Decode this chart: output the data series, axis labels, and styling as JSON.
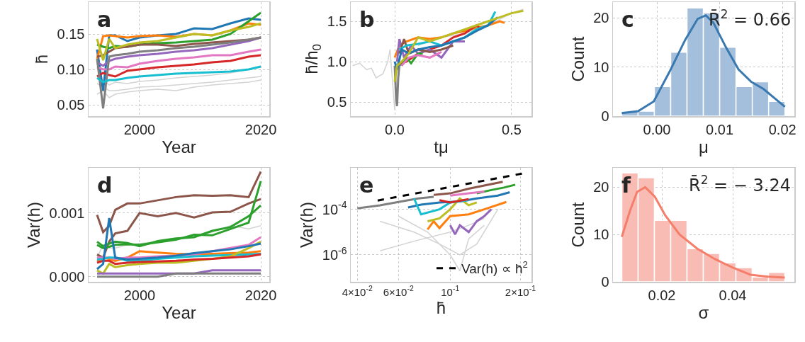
{
  "chart_data": [
    {
      "type": "line",
      "title": "a",
      "xlabel": "Year",
      "ylabel": "h̄",
      "xlim": [
        1991.6,
        2021.4
      ],
      "ylim": [
        0.034,
        0.195
      ],
      "xticks": [
        {
          "value": 2000,
          "label": "2000"
        },
        {
          "value": 2020,
          "label": "2020"
        }
      ],
      "yticks": [
        {
          "value": 0.05,
          "label": "0.05"
        },
        {
          "value": 0.1,
          "label": "0.10"
        },
        {
          "value": 0.15,
          "label": "0.15"
        }
      ],
      "grid": true,
      "x": [
        1993,
        1994,
        1995,
        1996,
        1998,
        2000,
        2003,
        2006,
        2009,
        2012,
        2015,
        2018,
        2020
      ],
      "series": [
        {
          "color": "#d3d3d3",
          "values": [
            0.08,
            0.075,
            0.07,
            0.07,
            0.072,
            0.075,
            0.076,
            0.078,
            0.08,
            0.082,
            0.085,
            0.088,
            0.09
          ]
        },
        {
          "color": "#d3d3d3",
          "values": [
            0.09,
            0.085,
            0.078,
            0.082,
            0.08,
            0.083,
            0.085,
            0.088,
            0.09,
            0.092,
            0.095,
            0.1,
            0.105
          ]
        },
        {
          "color": "#d3d3d3",
          "values": [
            0.065,
            0.07,
            0.06,
            0.065,
            0.068,
            0.07,
            0.072,
            0.07,
            0.075,
            0.078,
            0.08,
            0.082,
            0.085
          ]
        },
        {
          "color": "#1f77b4",
          "values": [
            0.128,
            0.07,
            0.148,
            0.148,
            0.14,
            0.145,
            0.148,
            0.15,
            0.158,
            0.157,
            0.165,
            0.172,
            0.17
          ]
        },
        {
          "color": "#ff7f0e",
          "values": [
            0.115,
            0.147,
            0.148,
            0.147,
            0.145,
            0.147,
            0.148,
            0.146,
            0.15,
            0.148,
            0.155,
            0.165,
            0.163
          ]
        },
        {
          "color": "#2ca02c",
          "values": [
            0.135,
            0.132,
            0.13,
            0.133,
            0.132,
            0.135,
            0.137,
            0.138,
            0.14,
            0.142,
            0.15,
            0.168,
            0.18
          ]
        },
        {
          "color": "#d62728",
          "values": [
            0.09,
            0.095,
            0.092,
            0.09,
            0.098,
            0.1,
            0.103,
            0.105,
            0.107,
            0.11,
            0.112,
            0.118,
            0.12
          ]
        },
        {
          "color": "#9467bd",
          "values": [
            0.11,
            0.105,
            0.112,
            0.115,
            0.118,
            0.12,
            0.122,
            0.125,
            0.127,
            0.13,
            0.135,
            0.14,
            0.145
          ]
        },
        {
          "color": "#8c564b",
          "values": [
            0.118,
            0.12,
            0.125,
            0.13,
            0.132,
            0.135,
            0.135,
            0.133,
            0.136,
            0.138,
            0.14,
            0.142,
            0.145
          ]
        },
        {
          "color": "#e377c2",
          "values": [
            0.103,
            0.1,
            0.1,
            0.104,
            0.103,
            0.108,
            0.112,
            0.115,
            0.117,
            0.12,
            0.12,
            0.125,
            0.128
          ]
        },
        {
          "color": "#7f7f7f",
          "values": [
            0.115,
            0.045,
            0.118,
            0.12,
            0.122,
            0.125,
            0.127,
            0.13,
            0.132,
            0.135,
            0.138,
            0.142,
            0.145
          ]
        },
        {
          "color": "#bcbd22",
          "values": [
            0.143,
            0.113,
            0.143,
            0.13,
            0.135,
            0.138,
            0.14,
            0.145,
            0.15,
            0.148,
            0.155,
            0.16,
            0.165
          ]
        },
        {
          "color": "#17becf",
          "values": [
            0.088,
            0.082,
            0.085,
            0.085,
            0.088,
            0.09,
            0.092,
            0.094,
            0.095,
            0.096,
            0.097,
            0.1,
            0.104
          ]
        }
      ]
    },
    {
      "type": "line",
      "title": "b",
      "xlabel": "tμ",
      "ylabel": "h̄/h$_{0}$",
      "xlim": [
        -0.188,
        0.585
      ],
      "ylim": [
        0.325,
        1.737
      ],
      "xticks": [
        {
          "value": 0,
          "label": "0.0"
        },
        {
          "value": 0.5,
          "label": "0.5"
        }
      ],
      "yticks": [
        {
          "value": 0.5,
          "label": "0.5"
        },
        {
          "value": 1,
          "label": "1.0"
        },
        {
          "value": 1.5,
          "label": "1.5"
        }
      ],
      "grid": true,
      "series": [
        {
          "color": "#d3d3d3",
          "x": [
            -0.18,
            -0.15,
            -0.12,
            -0.1,
            -0.08,
            -0.05,
            -0.03,
            -0.02,
            0,
            0.01,
            0.03
          ],
          "values": [
            0.95,
            0.98,
            0.9,
            0.92,
            0.8,
            0.85,
            1.0,
            1.15,
            0.4,
            1.0,
            1.1
          ]
        },
        {
          "color": "#d3d3d3",
          "x": [
            0.1,
            0.2,
            0.3,
            0.4,
            0.5,
            0.55
          ],
          "values": [
            1.2,
            1.3,
            1.35,
            1.45,
            1.6,
            1.65
          ]
        },
        {
          "color": "#7f7f7f",
          "x": [
            0,
            0.005,
            0.01,
            0.015,
            0.02,
            0.04
          ],
          "values": [
            0.95,
            0.6,
            0.45,
            0.8,
            0.95,
            1.0
          ]
        },
        {
          "color": "#ff7f0e",
          "x": [
            0,
            0.02,
            0.05,
            0.1,
            0.15,
            0.2,
            0.25,
            0.3,
            0.35,
            0.4,
            0.45,
            0.47
          ],
          "values": [
            1.05,
            1.2,
            1.25,
            1.3,
            1.28,
            1.3,
            1.35,
            1.38,
            1.42,
            1.45,
            1.5,
            1.48
          ]
        },
        {
          "color": "#d62728",
          "x": [
            0.02,
            0.05,
            0.1,
            0.15,
            0.2,
            0.25,
            0.3,
            0.35,
            0.37
          ],
          "values": [
            0.98,
            1.0,
            1.1,
            1.15,
            1.2,
            1.3,
            1.35,
            1.45,
            1.4
          ]
        },
        {
          "color": "#9467bd",
          "x": [
            0.01,
            0.02,
            0.04,
            0.07,
            0.1,
            0.15,
            0.2,
            0.25,
            0.3
          ],
          "values": [
            1.0,
            1.28,
            1.05,
            1.2,
            1.1,
            1.15,
            1.05,
            1.25,
            1.25
          ]
        },
        {
          "color": "#8c564b",
          "x": [
            0.02,
            0.04,
            0.06,
            0.1,
            0.15,
            0.2,
            0.25
          ],
          "values": [
            1.1,
            1.28,
            1.1,
            1.15,
            1.12,
            1.15,
            1.2
          ]
        },
        {
          "color": "#2ca02c",
          "x": [
            0.03,
            0.05,
            0.07,
            0.1,
            0.12
          ],
          "values": [
            0.95,
            1.05,
            0.98,
            1.1,
            1.1
          ]
        },
        {
          "color": "#e377c2",
          "x": [
            0.03,
            0.06,
            0.1,
            0.15,
            0.2
          ],
          "values": [
            0.95,
            1.05,
            1.08,
            1.05,
            1.12
          ]
        },
        {
          "color": "#17becf",
          "x": [
            0.02,
            0.05,
            0.1,
            0.15,
            0.2,
            0.25,
            0.3,
            0.35,
            0.4,
            0.43
          ],
          "values": [
            1.15,
            1.2,
            1.22,
            1.25,
            1.2,
            1.25,
            1.3,
            1.4,
            1.45,
            1.62
          ]
        },
        {
          "color": "#1f77b4",
          "x": [
            0,
            0.01,
            0.03,
            0.06,
            0.1,
            0.15,
            0.2,
            0.25,
            0.3,
            0.35,
            0.4,
            0.44
          ],
          "values": [
            1.0,
            0.9,
            1.15,
            1.1,
            1.15,
            1.18,
            1.2,
            1.25,
            1.3,
            1.38,
            1.45,
            1.55
          ]
        },
        {
          "color": "#bcbd22",
          "x": [
            0,
            0.01,
            0.03,
            0.06,
            0.1,
            0.15,
            0.2,
            0.25,
            0.3,
            0.35,
            0.4,
            0.45,
            0.5,
            0.55
          ],
          "values": [
            0.75,
            0.95,
            1.0,
            1.1,
            1.3,
            1.25,
            1.3,
            1.35,
            1.4,
            1.45,
            1.5,
            1.55,
            1.6,
            1.63
          ]
        }
      ]
    },
    {
      "type": "histogram",
      "title": "c",
      "xlabel": "μ",
      "ylabel": "Count",
      "xlim": [
        -0.007,
        0.0219
      ],
      "ylim": [
        0,
        23.2
      ],
      "xticks": [
        {
          "value": 0,
          "label": "0.00"
        },
        {
          "value": 0.01,
          "label": "0.01"
        },
        {
          "value": 0.02,
          "label": "0.02"
        }
      ],
      "yticks": [
        0,
        10,
        20
      ],
      "grid": true,
      "annotations": [
        "R̄$^{2}$ = 0.66"
      ],
      "bins": [
        -0.0056,
        -0.003,
        -0.0004,
        0.0022,
        0.0048,
        0.0074,
        0.01,
        0.0126,
        0.0152,
        0.0178,
        0.0204
      ],
      "values": [
        1,
        1,
        6,
        13,
        22,
        21,
        14,
        6,
        7,
        3
      ],
      "color": "#a3bfdb",
      "series": [
        {
          "type": "line",
          "color": "#3a78b0",
          "x": [
            -0.0056,
            -0.003,
            -0.0005,
            0.002,
            0.0045,
            0.0065,
            0.0078,
            0.009,
            0.011,
            0.013,
            0.015,
            0.017,
            0.0204
          ],
          "values": [
            0.6,
            1.0,
            3,
            9,
            15.5,
            19.8,
            20.5,
            19,
            14,
            9.5,
            7,
            5.5,
            1.9
          ]
        }
      ]
    },
    {
      "type": "line",
      "title": "d",
      "xlabel": "Year",
      "ylabel": "Var(h)",
      "xlim": [
        1991.6,
        2021.4
      ],
      "ylim": [
        -8e-05,
        0.00171
      ],
      "xticks": [
        {
          "value": 2000,
          "label": "2000"
        },
        {
          "value": 2020,
          "label": "2020"
        }
      ],
      "yticks": [
        {
          "value": 0,
          "label": "0.000"
        },
        {
          "value": 0.001,
          "label": "0.001"
        }
      ],
      "grid": true,
      "x": [
        1993,
        1994,
        1995,
        1996,
        1998,
        2000,
        2003,
        2006,
        2009,
        2012,
        2015,
        2018,
        2020
      ],
      "series": [
        {
          "color": "#d3d3d3",
          "values": [
            0.0003,
            0.0005,
            0.00045,
            0.00045,
            0.0005,
            0.00052,
            0.00055,
            0.0006,
            0.00065,
            0.0007,
            0.0008,
            0.00075,
            0.0008
          ]
        },
        {
          "color": "#8c564b",
          "values": [
            0.00097,
            0.0007,
            0.0008,
            0.00105,
            0.00115,
            0.00115,
            0.0012,
            0.00125,
            0.00128,
            0.00127,
            0.00128,
            0.00125,
            0.00165
          ]
        },
        {
          "color": "#8c564b",
          "values": [
            0.00035,
            0.0003,
            0.00055,
            0.00068,
            0.00072,
            0.001,
            0.00095,
            0.001,
            0.00093,
            0.00101,
            0.00102,
            0.00115,
            0.00122
          ]
        },
        {
          "color": "#2ca02c",
          "values": [
            0.00055,
            0.00048,
            0.00052,
            0.00055,
            0.00053,
            0.00048,
            0.00056,
            0.0006,
            0.00062,
            0.00072,
            0.00078,
            0.00095,
            0.00112
          ]
        },
        {
          "color": "#2ca02c",
          "values": [
            0.0005,
            0.00045,
            0.00047,
            0.0005,
            0.00051,
            0.0005,
            0.00054,
            0.00058,
            0.00066,
            0.00065,
            0.00075,
            0.00085,
            0.0015
          ]
        },
        {
          "color": "#ff7f0e",
          "values": [
            0.00025,
            0.0003,
            0.00028,
            0.00025,
            0.0003,
            0.0004,
            0.00038,
            0.00036,
            0.00035,
            0.00036,
            0.00037,
            0.00038,
            0.0004
          ]
        },
        {
          "color": "#e377c2",
          "values": [
            0.0003,
            0.0003,
            0.0003,
            0.00028,
            0.0003,
            0.0003,
            0.00032,
            0.00033,
            0.00035,
            0.0004,
            0.00045,
            0.0005,
            0.00062
          ]
        },
        {
          "color": "#17becf",
          "values": [
            0.00027,
            0.00028,
            0.0003,
            0.0003,
            0.00025,
            0.00025,
            0.00028,
            0.0003,
            0.00032,
            0.00033,
            0.00034,
            0.00035,
            0.00036
          ]
        },
        {
          "color": "#bcbd22",
          "values": [
            0.0001,
            5e-05,
            0.0002,
            0.00015,
            0.00018,
            0.0002,
            0.00022,
            0.00022,
            0.00025,
            0.00028,
            0.00032,
            0.00045,
            0.00055
          ]
        },
        {
          "color": "#d62728",
          "values": [
            0.00022,
            0.00025,
            0.00025,
            0.0002,
            0.00022,
            0.00023,
            0.00024,
            0.00025,
            0.00027,
            0.00028,
            0.0003,
            0.00032,
            0.00035
          ]
        },
        {
          "color": "#9467bd",
          "values": [
            5e-05,
            5e-05,
            5e-05,
            5e-05,
            5e-05,
            5e-05,
            5e-05,
            5e-05,
            5e-05,
            0.0001,
            0.0001,
            0.0001,
            0.0001
          ]
        },
        {
          "color": "#7f7f7f",
          "values": [
            0,
            0,
            0,
            0,
            0,
            0,
            0,
            5e-05,
            5e-05,
            5e-05,
            5e-05,
            5e-05,
            5e-05
          ]
        },
        {
          "color": "#1f77b4",
          "values": [
            0.00012,
            0.0002,
            0.00092,
            0.0003,
            0.00027,
            0.00028,
            0.0003,
            0.00033,
            0.00037,
            0.0004,
            0.00043,
            0.00048,
            0.00052
          ]
        }
      ]
    },
    {
      "type": "line",
      "title": "e",
      "xlabel": "h̄",
      "ylabel": "Var(h)",
      "log": "xy",
      "xlim": [
        0.0375,
        0.223
      ],
      "ylim": [
        6.6e-08,
        0.0066
      ],
      "xticks": [
        {
          "value": 0.04,
          "label": "4×10$^{-2}$"
        },
        {
          "value": 0.06,
          "label": "6×10$^{-2}$"
        },
        {
          "value": 0.1,
          "label": "10$^{-1}$"
        },
        {
          "value": 0.2,
          "label": "2×10$^{-1}$"
        }
      ],
      "yticks": [
        {
          "value": 1e-06,
          "label": "10$^{-6}$"
        },
        {
          "value": 0.0001,
          "label": "10$^{-4}$"
        }
      ],
      "grid": true,
      "legend": "bottom right",
      "series": [
        {
          "color": "#d3d3d3",
          "x": [
            0.05,
            0.07,
            0.1,
            0.12,
            0.14
          ],
          "values": [
            1.5e-06,
            4e-06,
            1e-05,
            2e-05,
            4e-05
          ]
        },
        {
          "color": "#d3d3d3",
          "x": [
            0.06,
            0.08,
            0.1,
            0.11,
            0.12,
            0.14
          ],
          "values": [
            5e-05,
            1e-05,
            1e-06,
            2e-07,
            5e-06,
            2e-05
          ]
        },
        {
          "color": "#d3d3d3",
          "x": [
            0.05,
            0.07,
            0.09,
            0.11,
            0.13,
            0.16
          ],
          "values": [
            3e-05,
            1e-05,
            3e-06,
            1e-06,
            3e-06,
            0.0001
          ]
        },
        {
          "color": "#7f7f7f",
          "x": [
            0.04,
            0.05,
            0.06,
            0.073,
            0.085
          ],
          "values": [
            0.00011,
            0.00015,
            0.00021,
            0.0003,
            0.00035
          ]
        },
        {
          "color": "#8c564b",
          "x": [
            0.085,
            0.1,
            0.12,
            0.14,
            0.168
          ],
          "values": [
            0.00043,
            0.0005,
            0.0008,
            0.0011,
            0.0016
          ]
        },
        {
          "color": "#1f77b4",
          "x": [
            0.066,
            0.075,
            0.09,
            0.11,
            0.13,
            0.16,
            0.18
          ],
          "values": [
            0.00012,
            0.00016,
            0.0002,
            0.00022,
            0.0003,
            0.0004,
            0.00056
          ]
        },
        {
          "color": "#2ca02c",
          "x": [
            0.13,
            0.15,
            0.17,
            0.19
          ],
          "values": [
            0.0005,
            0.0007,
            0.0009,
            0.0012
          ]
        },
        {
          "color": "#ff7f0e",
          "x": [
            0.08,
            0.085,
            0.09,
            0.1,
            0.12,
            0.14,
            0.174
          ],
          "values": [
            1.3e-05,
            3e-05,
            1.5e-05,
            5e-05,
            6e-05,
            0.0001,
            0.00021
          ]
        },
        {
          "color": "#9467bd",
          "x": [
            0.1,
            0.105,
            0.11,
            0.12,
            0.13,
            0.14,
            0.15
          ],
          "values": [
            2e-05,
            8e-06,
            2e-05,
            1e-05,
            3e-05,
            5e-05,
            0.0001
          ]
        },
        {
          "color": "#bcbd22",
          "x": [
            0.08,
            0.09,
            0.1,
            0.11,
            0.12,
            0.13
          ],
          "values": [
            3e-05,
            4e-05,
            0.0001,
            0.0003,
            0.00015,
            0.0002
          ]
        },
        {
          "color": "#17becf",
          "x": [
            0.07,
            0.075,
            0.09,
            0.1,
            0.12
          ],
          "values": [
            0.0003,
            6e-05,
            0.0001,
            0.0002,
            0.00025
          ]
        },
        {
          "color": "#e377c2",
          "x": [
            0.1,
            0.12,
            0.14
          ],
          "values": [
            0.0004,
            0.0005,
            0.0006
          ]
        },
        {
          "color": "#d62728",
          "x": [
            0.09,
            0.1,
            0.12
          ],
          "values": [
            0.00025,
            0.0002,
            0.00028
          ]
        },
        {
          "name": "Var(h) ∝ h̄$^{2}$",
          "color": "#000000",
          "line_style": "dashed",
          "x": [
            0.0489,
            0.204
          ],
          "values": [
            0.000243,
            0.0037
          ]
        }
      ]
    },
    {
      "type": "histogram",
      "title": "f",
      "xlabel": "σ",
      "ylabel": "Count",
      "xlim": [
        0.0062,
        0.0574
      ],
      "ylim": [
        0,
        24.1
      ],
      "xticks": [
        {
          "value": 0.02,
          "label": "0.02"
        },
        {
          "value": 0.04,
          "label": "0.04"
        }
      ],
      "yticks": [
        0,
        10,
        20
      ],
      "grid": true,
      "annotations": [
        "R̄$^{2}$ = − 3.24"
      ],
      "bins": [
        0.0087,
        0.0133,
        0.0179,
        0.0225,
        0.0271,
        0.0317,
        0.0363,
        0.0409,
        0.0455,
        0.0501,
        0.0547
      ],
      "values": [
        23,
        22,
        13,
        13,
        7,
        6,
        4,
        3,
        1,
        2
      ],
      "color": "#f9bcb5",
      "series": [
        {
          "type": "line",
          "color": "#f47e6a",
          "x": [
            0.0087,
            0.011,
            0.013,
            0.0153,
            0.018,
            0.021,
            0.025,
            0.03,
            0.035,
            0.04,
            0.045,
            0.05,
            0.0547
          ],
          "values": [
            9.5,
            15,
            19,
            20,
            18,
            14,
            10,
            7,
            4.8,
            3,
            1.5,
            1.1,
            0.9
          ]
        }
      ]
    }
  ]
}
